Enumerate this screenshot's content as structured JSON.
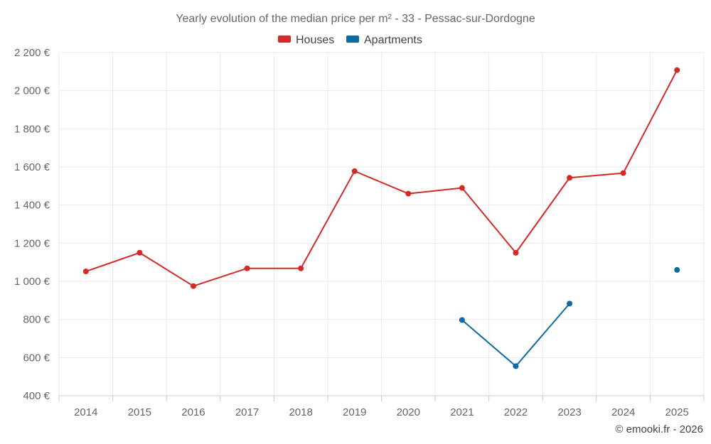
{
  "chart_data": {
    "type": "line",
    "title": "Yearly evolution of the median price per m² - 33 - Pessac-sur-Dordogne",
    "categories": [
      "2014",
      "2015",
      "2016",
      "2017",
      "2018",
      "2019",
      "2020",
      "2021",
      "2022",
      "2023",
      "2024",
      "2025"
    ],
    "series": [
      {
        "name": "Houses",
        "color": "#d42a27",
        "values": [
          1052,
          1150,
          975,
          1068,
          1068,
          1578,
          1460,
          1490,
          1150,
          1543,
          1568,
          2108
        ]
      },
      {
        "name": "Apartments",
        "color": "#0a6aa1",
        "values": [
          null,
          null,
          null,
          null,
          null,
          null,
          null,
          797,
          555,
          883,
          null,
          1060
        ]
      }
    ],
    "yticks": [
      400,
      600,
      800,
      1000,
      1200,
      1400,
      1600,
      1800,
      2000,
      2200
    ],
    "ytick_labels": [
      "400 €",
      "600 €",
      "800 €",
      "1 000 €",
      "1 200 €",
      "1 400 €",
      "1 600 €",
      "1 800 €",
      "2 000 €",
      "2 200 €"
    ],
    "ylim": [
      400,
      2200
    ],
    "xlabel": "",
    "ylabel": "",
    "grid": true,
    "legend_position": "top-center"
  },
  "credit": "© emooki.fr - 2026"
}
